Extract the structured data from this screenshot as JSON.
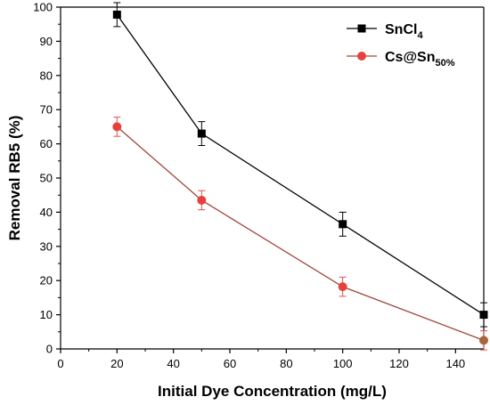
{
  "chart_data": {
    "type": "line",
    "xlabel": "Initial Dye Concentration (mg/L)",
    "ylabel": "Removal RB5 (%)",
    "xlim": [
      0,
      150
    ],
    "ylim": [
      0,
      100
    ],
    "xticks": [
      0,
      20,
      40,
      60,
      80,
      100,
      120,
      140
    ],
    "yticks": [
      0,
      10,
      20,
      30,
      40,
      50,
      60,
      70,
      80,
      90,
      100
    ],
    "grid": false,
    "legend_position": "top-right",
    "series": [
      {
        "legend_main": "SnCl",
        "legend_sub": "4",
        "marker": "square",
        "color": "#000000",
        "line_color": "#000000",
        "x": [
          20,
          50,
          100,
          150
        ],
        "y": [
          97.8,
          63,
          36.5,
          10
        ],
        "error": [
          3.5,
          3.5,
          3.5,
          3.5
        ]
      },
      {
        "legend_main": "Cs@Sn",
        "legend_sub": "50%",
        "marker": "circle",
        "color": "#e8413c",
        "line_color": "#a0463c",
        "x": [
          20,
          50,
          100,
          150
        ],
        "y": [
          65,
          43.5,
          18.2,
          2.5
        ],
        "error": [
          2.8,
          2.8,
          2.8,
          2.8
        ]
      }
    ]
  }
}
